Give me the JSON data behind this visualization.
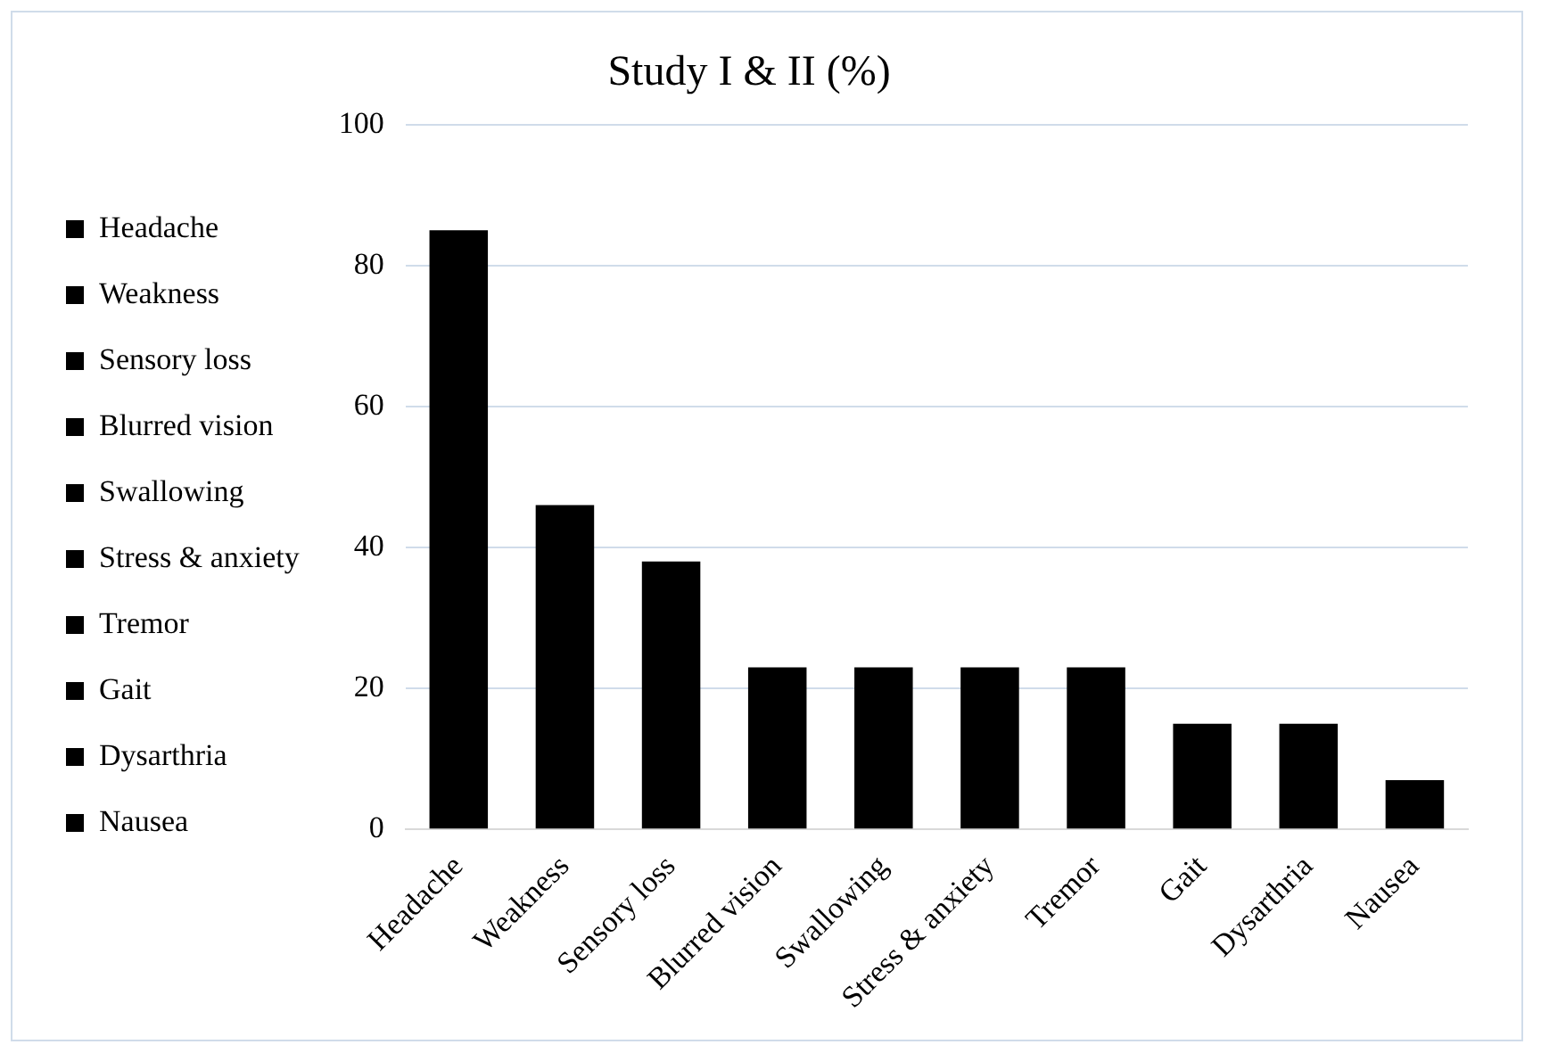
{
  "chart_data": {
    "type": "bar",
    "title": "Study I & II (%)",
    "categories": [
      "Headache",
      "Weakness",
      "Sensory loss",
      "Blurred vision",
      "Swallowing",
      "Stress & anxiety",
      "Tremor",
      "Gait",
      "Dysarthria",
      "Nausea"
    ],
    "series": [
      {
        "name": "Headache",
        "color": "#000000",
        "values": [
          85,
          null,
          null,
          null,
          null,
          null,
          null,
          null,
          null,
          null
        ]
      },
      {
        "name": "Weakness",
        "color": "#000000",
        "values": [
          null,
          46,
          null,
          null,
          null,
          null,
          null,
          null,
          null,
          null
        ]
      },
      {
        "name": "Sensory loss",
        "color": "#000000",
        "values": [
          null,
          null,
          38,
          null,
          null,
          null,
          null,
          null,
          null,
          null
        ]
      },
      {
        "name": "Blurred vision",
        "color": "#000000",
        "values": [
          null,
          null,
          null,
          23,
          null,
          null,
          null,
          null,
          null,
          null
        ]
      },
      {
        "name": "Swallowing",
        "color": "#000000",
        "values": [
          null,
          null,
          null,
          null,
          23,
          null,
          null,
          null,
          null,
          null
        ]
      },
      {
        "name": "Stress & anxiety",
        "color": "#000000",
        "values": [
          null,
          null,
          null,
          null,
          null,
          23,
          null,
          null,
          null,
          null
        ]
      },
      {
        "name": "Tremor",
        "color": "#000000",
        "values": [
          null,
          null,
          null,
          null,
          null,
          null,
          23,
          null,
          null,
          null
        ]
      },
      {
        "name": "Gait",
        "color": "#000000",
        "values": [
          null,
          null,
          null,
          null,
          null,
          null,
          null,
          15,
          null,
          null
        ]
      },
      {
        "name": "Dysarthria",
        "color": "#000000",
        "values": [
          null,
          null,
          null,
          null,
          null,
          null,
          null,
          null,
          15,
          null
        ]
      },
      {
        "name": "Nausea",
        "color": "#000000",
        "values": [
          null,
          null,
          null,
          null,
          null,
          null,
          null,
          null,
          null,
          7
        ]
      }
    ],
    "ylim": [
      0,
      100
    ],
    "yticks": [
      0,
      20,
      40,
      60,
      80,
      100
    ],
    "grid": "y",
    "legend": "left"
  }
}
